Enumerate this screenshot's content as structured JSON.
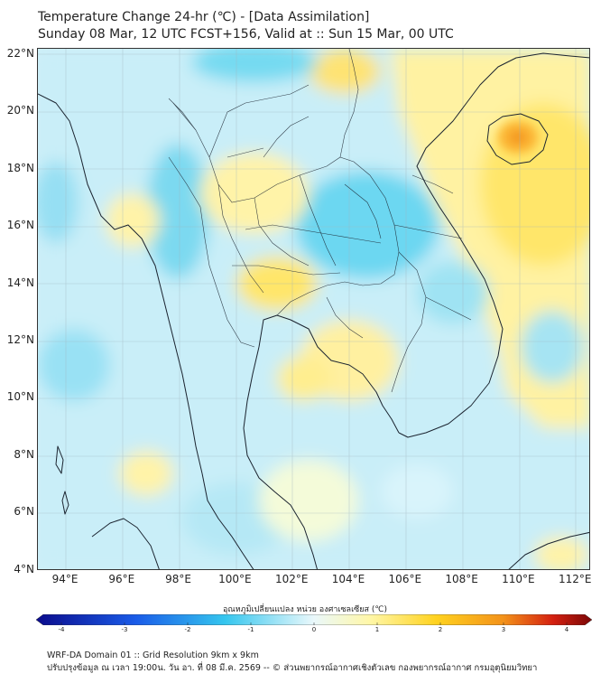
{
  "title": {
    "line1": "Temperature Change 24-hr (℃) - [Data Assimilation]",
    "line2": "Sunday 08 Mar, 12 UTC FCST+156, Valid at :: Sun 15 Mar, 00 UTC"
  },
  "map": {
    "lat_labels": [
      "22°N",
      "20°N",
      "18°N",
      "16°N",
      "14°N",
      "12°N",
      "10°N",
      "8°N",
      "6°N",
      "4°N"
    ],
    "lon_labels": [
      "94°E",
      "96°E",
      "98°E",
      "100°E",
      "102°E",
      "104°E",
      "106°E",
      "108°E",
      "110°E",
      "112°E"
    ],
    "lat_values": [
      22,
      20,
      18,
      16,
      14,
      12,
      10,
      8,
      6,
      4
    ],
    "lon_values": [
      94,
      96,
      98,
      100,
      102,
      104,
      106,
      108,
      110,
      112
    ]
  },
  "colorbar": {
    "title": "อุณหภูมิเปลี่ยนแปลง หน่วย องศาเซลเซียส (℃)",
    "min": -4,
    "max": 4,
    "tick_labels": [
      "-4",
      "-3",
      "-2",
      "-1",
      "0",
      "1",
      "2",
      "3",
      "4"
    ],
    "colors": {
      "min": "#0b0b8c",
      "blue": "#1a5ce8",
      "cyan": "#35c6ee",
      "pale": "#eaf8fb",
      "light_yellow": "#fff7a8",
      "yellow": "#ffd21f",
      "orange": "#f3921a",
      "red": "#d42010",
      "max": "#7a0707"
    }
  },
  "footer": {
    "line1": "WRF-DA Domain 01 :: Grid Resolution 9km x 9km",
    "line2": "ปรับปรุงข้อมูล ณ เวลา 19:00น. วัน อา. ที่ 08 มี.ค. 2569 -- © ส่วนพยากรณ์อากาศเชิงตัวเลข กองพยากรณ์อากาศ กรมอุตุนิยมวิทยา"
  }
}
